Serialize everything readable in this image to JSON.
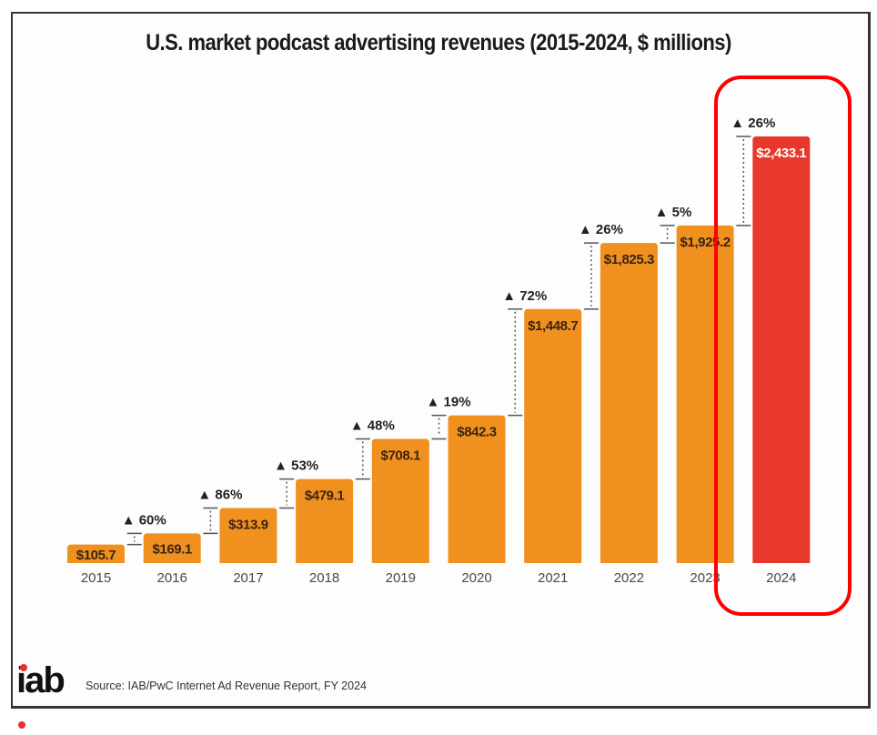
{
  "chart_data": {
    "type": "bar",
    "title": "U.S. market podcast advertising revenues (2015-2024, $ millions)",
    "xlabel": "",
    "ylabel": "",
    "categories": [
      "2015",
      "2016",
      "2017",
      "2018",
      "2019",
      "2020",
      "2021",
      "2022",
      "2023",
      "2024"
    ],
    "values": [
      105.7,
      169.1,
      313.9,
      479.1,
      708.1,
      842.3,
      1448.7,
      1825.3,
      1925.2,
      2433.1
    ],
    "value_labels": [
      "$105.7",
      "$169.1",
      "$313.9",
      "$479.1",
      "$708.1",
      "$842.3",
      "$1,448.7",
      "$1,825.3",
      "$1,925.2",
      "$2,433.1"
    ],
    "growth_labels": [
      null,
      "▲ 60%",
      "▲ 86%",
      "▲ 53%",
      "▲ 48%",
      "▲ 19%",
      "▲ 72%",
      "▲ 26%",
      "▲ 5%",
      "▲ 26%"
    ],
    "ylim": [
      0,
      2433.1
    ],
    "grid": false,
    "legend": "none",
    "highlighted_category": "2024"
  },
  "colors": {
    "bar": "#F0901F",
    "highlight_bar": "#E8382B",
    "value_text": "#3a2412",
    "highlight_value_text": "#ffffff",
    "annotation_box": "#FF0000"
  },
  "footer": {
    "logo_text": "iab",
    "source": "Source: IAB/PwC Internet Ad Revenue Report, FY 2024"
  }
}
